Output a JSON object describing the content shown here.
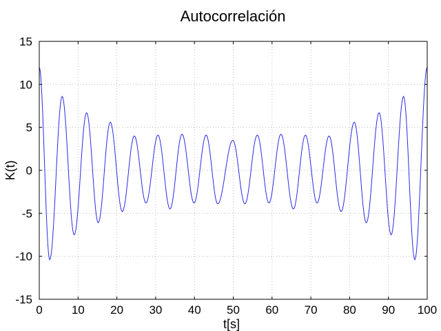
{
  "chart_data": {
    "type": "line",
    "title": "Autocorrelación",
    "xlabel": "t[s]",
    "ylabel": "K(t)",
    "xlim": [
      0,
      100
    ],
    "ylim": [
      -15,
      15
    ],
    "xticks": [
      0,
      10,
      20,
      30,
      40,
      50,
      60,
      70,
      80,
      90,
      100
    ],
    "yticks": [
      -15,
      -10,
      -5,
      0,
      5,
      10,
      15
    ],
    "grid": true,
    "legend": "none",
    "colors": {
      "series": "#2929e6",
      "grid": "#bbbbbb",
      "frame": "#000000"
    },
    "series": [
      {
        "x": [
          0,
          2.7,
          5.9,
          9.0,
          12.2,
          15.2,
          18.3,
          21.4,
          24.5,
          27.5,
          30.6,
          33.7,
          36.8,
          39.9,
          43.0,
          46.0,
          49.9,
          53.0,
          56.2,
          59.2,
          62.3,
          65.5,
          68.6,
          71.6,
          74.7,
          77.8,
          81.2,
          84.3,
          87.6,
          90.7,
          93.9,
          96.8,
          100
        ],
        "y": [
          12.0,
          -10.4,
          8.6,
          -7.5,
          6.7,
          -6.1,
          5.6,
          -4.8,
          4.0,
          -3.8,
          4.1,
          -4.5,
          4.2,
          -3.8,
          4.1,
          -3.9,
          3.5,
          -3.9,
          4.1,
          -3.8,
          4.2,
          -4.5,
          4.1,
          -3.8,
          4.0,
          -4.8,
          5.6,
          -6.1,
          6.7,
          -7.5,
          8.6,
          -10.4,
          12.0
        ]
      }
    ]
  }
}
